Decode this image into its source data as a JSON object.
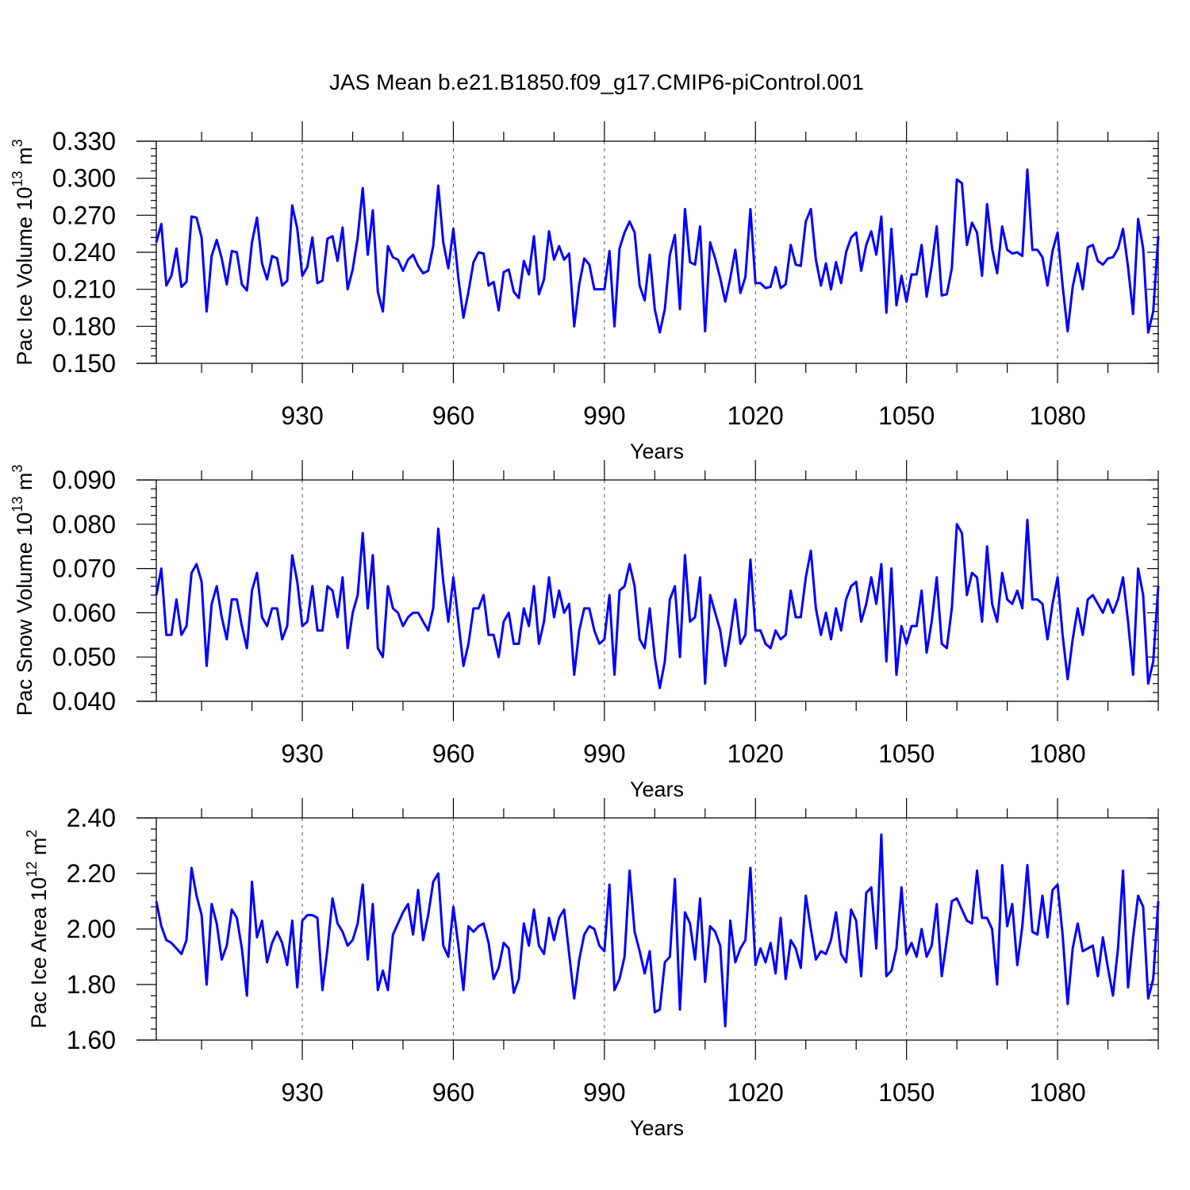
{
  "colors": {
    "series": "#0000ff",
    "axis": "#000000",
    "grid": "#555555",
    "background": "#ffffff"
  },
  "chart_data": [
    {
      "type": "line",
      "title": "JAS Mean b.e21.B1850.f09_g17.CMIP6-piControl.001",
      "xlabel": "Years",
      "ylabel": "Pac Ice Volume 10",
      "ylabel_exp": "13",
      "ylabel_unit": " m",
      "ylabel_unit_exp": "3",
      "xlim": [
        901,
        1100
      ],
      "ylim": [
        0.15,
        0.33
      ],
      "xticks": [
        930,
        960,
        990,
        1020,
        1050,
        1080
      ],
      "xtick_labels": [
        "930",
        "960",
        "990",
        "1020",
        "1050",
        "1080"
      ],
      "yticks": [
        0.15,
        0.18,
        0.21,
        0.24,
        0.27,
        0.3,
        0.33
      ],
      "ytick_labels": [
        "0.150",
        "0.180",
        "0.210",
        "0.240",
        "0.270",
        "0.300",
        "0.330"
      ],
      "grid": "dashed vertical at major x ticks",
      "series": [
        {
          "name": "Pac Ice Volume",
          "x_start": 901,
          "values": [
            0.248,
            0.263,
            0.213,
            0.221,
            0.243,
            0.212,
            0.216,
            0.269,
            0.268,
            0.252,
            0.192,
            0.237,
            0.25,
            0.235,
            0.214,
            0.241,
            0.24,
            0.214,
            0.209,
            0.248,
            0.268,
            0.231,
            0.218,
            0.237,
            0.235,
            0.213,
            0.217,
            0.278,
            0.259,
            0.221,
            0.228,
            0.252,
            0.215,
            0.217,
            0.251,
            0.253,
            0.233,
            0.26,
            0.21,
            0.226,
            0.252,
            0.292,
            0.238,
            0.274,
            0.208,
            0.192,
            0.245,
            0.236,
            0.234,
            0.225,
            0.234,
            0.238,
            0.229,
            0.223,
            0.225,
            0.245,
            0.294,
            0.248,
            0.227,
            0.259,
            0.219,
            0.187,
            0.208,
            0.232,
            0.24,
            0.239,
            0.213,
            0.216,
            0.193,
            0.224,
            0.226,
            0.208,
            0.203,
            0.233,
            0.222,
            0.253,
            0.206,
            0.218,
            0.257,
            0.234,
            0.245,
            0.234,
            0.239,
            0.18,
            0.214,
            0.235,
            0.23,
            0.21,
            0.21,
            0.21,
            0.241,
            0.18,
            0.243,
            0.256,
            0.265,
            0.256,
            0.213,
            0.201,
            0.238,
            0.194,
            0.175,
            0.194,
            0.238,
            0.254,
            0.194,
            0.275,
            0.232,
            0.23,
            0.261,
            0.176,
            0.248,
            0.235,
            0.219,
            0.2,
            0.219,
            0.242,
            0.207,
            0.22,
            0.275,
            0.215,
            0.215,
            0.211,
            0.212,
            0.228,
            0.211,
            0.214,
            0.246,
            0.23,
            0.229,
            0.265,
            0.275,
            0.234,
            0.213,
            0.231,
            0.21,
            0.232,
            0.215,
            0.24,
            0.252,
            0.256,
            0.225,
            0.246,
            0.257,
            0.238,
            0.269,
            0.191,
            0.259,
            0.197,
            0.221,
            0.2,
            0.222,
            0.222,
            0.246,
            0.204,
            0.229,
            0.261,
            0.205,
            0.206,
            0.227,
            0.299,
            0.296,
            0.246,
            0.264,
            0.256,
            0.221,
            0.279,
            0.243,
            0.223,
            0.261,
            0.242,
            0.239,
            0.24,
            0.237,
            0.307,
            0.242,
            0.242,
            0.236,
            0.213,
            0.241,
            0.256,
            0.213,
            0.176,
            0.212,
            0.231,
            0.21,
            0.244,
            0.246,
            0.233,
            0.23,
            0.235,
            0.236,
            0.243,
            0.259,
            0.228,
            0.19,
            0.267,
            0.243,
            0.175,
            0.192,
            0.253
          ]
        }
      ]
    },
    {
      "type": "line",
      "title": "",
      "xlabel": "Years",
      "ylabel": "Pac Snow Volume 10",
      "ylabel_exp": "13",
      "ylabel_unit": " m",
      "ylabel_unit_exp": "3",
      "xlim": [
        901,
        1100
      ],
      "ylim": [
        0.04,
        0.09
      ],
      "xticks": [
        930,
        960,
        990,
        1020,
        1050,
        1080
      ],
      "xtick_labels": [
        "930",
        "960",
        "990",
        "1020",
        "1050",
        "1080"
      ],
      "yticks": [
        0.04,
        0.05,
        0.06,
        0.07,
        0.08,
        0.09
      ],
      "ytick_labels": [
        "0.040",
        "0.050",
        "0.060",
        "0.070",
        "0.080",
        "0.090"
      ],
      "grid": "dashed vertical at major x ticks",
      "series": [
        {
          "name": "Pac Snow Volume",
          "x_start": 901,
          "values": [
            0.064,
            0.07,
            0.055,
            0.055,
            0.063,
            0.055,
            0.057,
            0.069,
            0.071,
            0.067,
            0.048,
            0.062,
            0.066,
            0.059,
            0.054,
            0.063,
            0.063,
            0.057,
            0.052,
            0.065,
            0.069,
            0.059,
            0.057,
            0.061,
            0.061,
            0.054,
            0.057,
            0.073,
            0.067,
            0.057,
            0.058,
            0.066,
            0.056,
            0.056,
            0.066,
            0.065,
            0.059,
            0.068,
            0.052,
            0.06,
            0.064,
            0.078,
            0.061,
            0.073,
            0.052,
            0.05,
            0.066,
            0.061,
            0.06,
            0.057,
            0.059,
            0.06,
            0.06,
            0.058,
            0.056,
            0.061,
            0.079,
            0.067,
            0.058,
            0.068,
            0.058,
            0.048,
            0.053,
            0.061,
            0.061,
            0.064,
            0.055,
            0.055,
            0.05,
            0.058,
            0.06,
            0.053,
            0.053,
            0.061,
            0.057,
            0.066,
            0.053,
            0.058,
            0.068,
            0.059,
            0.065,
            0.06,
            0.062,
            0.046,
            0.056,
            0.061,
            0.061,
            0.056,
            0.053,
            0.054,
            0.064,
            0.046,
            0.065,
            0.066,
            0.071,
            0.066,
            0.054,
            0.052,
            0.061,
            0.05,
            0.043,
            0.049,
            0.063,
            0.066,
            0.05,
            0.073,
            0.058,
            0.059,
            0.068,
            0.044,
            0.064,
            0.06,
            0.056,
            0.048,
            0.055,
            0.063,
            0.053,
            0.055,
            0.072,
            0.056,
            0.056,
            0.053,
            0.052,
            0.056,
            0.054,
            0.055,
            0.065,
            0.059,
            0.059,
            0.068,
            0.074,
            0.061,
            0.055,
            0.06,
            0.054,
            0.061,
            0.056,
            0.063,
            0.066,
            0.067,
            0.058,
            0.062,
            0.068,
            0.062,
            0.071,
            0.049,
            0.07,
            0.046,
            0.057,
            0.053,
            0.057,
            0.057,
            0.065,
            0.051,
            0.058,
            0.068,
            0.053,
            0.052,
            0.061,
            0.08,
            0.078,
            0.064,
            0.069,
            0.068,
            0.058,
            0.075,
            0.062,
            0.058,
            0.069,
            0.063,
            0.062,
            0.065,
            0.061,
            0.081,
            0.063,
            0.063,
            0.062,
            0.054,
            0.062,
            0.068,
            0.055,
            0.045,
            0.054,
            0.061,
            0.055,
            0.063,
            0.064,
            0.062,
            0.06,
            0.063,
            0.06,
            0.063,
            0.068,
            0.058,
            0.046,
            0.07,
            0.064,
            0.044,
            0.049,
            0.066
          ]
        }
      ]
    },
    {
      "type": "line",
      "title": "",
      "xlabel": "Years",
      "ylabel": "Pac Ice Area 10",
      "ylabel_exp": "12",
      "ylabel_unit": " m",
      "ylabel_unit_exp": "2",
      "xlim": [
        901,
        1100
      ],
      "ylim": [
        1.6,
        2.4
      ],
      "xticks": [
        930,
        960,
        990,
        1020,
        1050,
        1080
      ],
      "xtick_labels": [
        "930",
        "960",
        "990",
        "1020",
        "1050",
        "1080"
      ],
      "yticks": [
        1.6,
        1.8,
        2.0,
        2.2,
        2.4
      ],
      "ytick_labels": [
        "1.60",
        "1.80",
        "2.00",
        "2.20",
        "2.40"
      ],
      "grid": "dashed vertical at major x ticks",
      "series": [
        {
          "name": "Pac Ice Area",
          "x_start": 901,
          "values": [
            2.1,
            2.01,
            1.96,
            1.95,
            1.93,
            1.91,
            1.96,
            2.22,
            2.12,
            2.05,
            1.8,
            2.09,
            2.02,
            1.89,
            1.94,
            2.07,
            2.04,
            1.93,
            1.76,
            2.17,
            1.97,
            2.03,
            1.88,
            1.95,
            1.99,
            1.95,
            1.87,
            2.03,
            1.79,
            2.03,
            2.05,
            2.05,
            2.04,
            1.78,
            1.93,
            2.11,
            2.02,
            1.99,
            1.94,
            1.96,
            2.02,
            2.16,
            1.89,
            2.09,
            1.78,
            1.85,
            1.78,
            1.98,
            2.02,
            2.06,
            2.09,
            1.98,
            2.14,
            1.96,
            2.05,
            2.17,
            2.2,
            1.94,
            1.9,
            2.08,
            1.94,
            1.78,
            2.01,
            1.99,
            2.01,
            2.02,
            1.95,
            1.82,
            1.86,
            1.95,
            1.93,
            1.77,
            1.82,
            2.02,
            1.94,
            2.07,
            1.94,
            1.91,
            2.04,
            1.96,
            2.04,
            2.07,
            1.91,
            1.75,
            1.89,
            1.98,
            2.01,
            2.0,
            1.94,
            1.92,
            2.16,
            1.78,
            1.82,
            1.9,
            2.21,
            1.99,
            1.92,
            1.84,
            1.92,
            1.7,
            1.71,
            1.88,
            1.9,
            2.18,
            1.71,
            2.06,
            2.02,
            1.89,
            2.11,
            1.81,
            2.01,
            1.99,
            1.94,
            1.65,
            2.03,
            1.88,
            1.93,
            1.96,
            2.22,
            1.87,
            1.93,
            1.88,
            1.95,
            1.84,
            2.04,
            1.82,
            1.96,
            1.93,
            1.86,
            2.12,
            2.0,
            1.89,
            1.92,
            1.91,
            1.96,
            2.06,
            1.91,
            1.88,
            2.07,
            2.03,
            1.83,
            2.13,
            2.15,
            1.93,
            2.34,
            1.83,
            1.85,
            1.93,
            2.15,
            1.91,
            1.95,
            1.9,
            2.0,
            1.9,
            1.94,
            2.09,
            1.83,
            1.96,
            2.1,
            2.11,
            2.07,
            2.03,
            2.02,
            2.21,
            2.04,
            2.04,
            2.0,
            1.8,
            2.23,
            2.01,
            2.09,
            1.87,
            2.01,
            2.23,
            1.99,
            1.98,
            2.12,
            1.97,
            2.14,
            2.16,
            1.98,
            1.73,
            1.93,
            2.02,
            1.92,
            1.93,
            1.94,
            1.83,
            1.97,
            1.86,
            1.76,
            1.93,
            2.21,
            1.79,
            1.97,
            2.12,
            2.08,
            1.75,
            1.82,
            2.1
          ]
        }
      ]
    }
  ]
}
